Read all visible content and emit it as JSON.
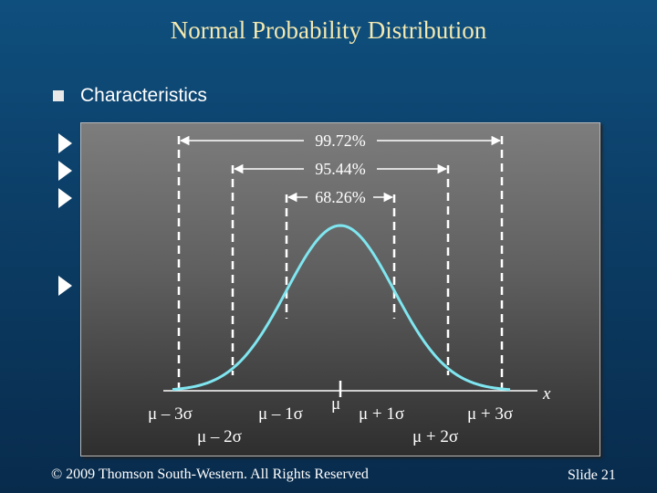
{
  "title": "Normal Probability Distribution",
  "bullet": "Characteristics",
  "diagram": {
    "intervals": [
      {
        "label": "99.72%",
        "sigma": 3
      },
      {
        "label": "95.44%",
        "sigma": 2
      },
      {
        "label": "68.26%",
        "sigma": 1
      }
    ],
    "tick_labels": {
      "m3": "μ – 3σ",
      "m2": "μ – 2σ",
      "m1": "μ – 1σ",
      "mu": "μ",
      "p1": "μ + 1σ",
      "p2": "μ + 2σ",
      "p3": "μ + 3σ"
    },
    "axis_label": "x",
    "curve_color": "#7fe6f0"
  },
  "footer": "© 2009  Thomson South-Western.  All Rights Reserved",
  "slide": "Slide 21"
}
